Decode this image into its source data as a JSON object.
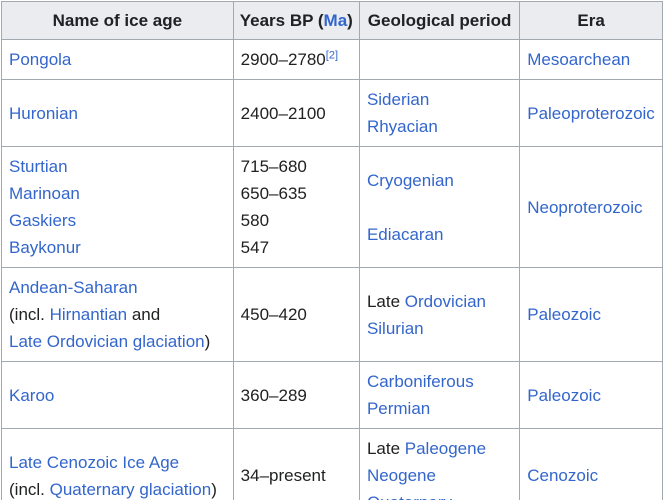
{
  "header": {
    "col1": "Name of ice age",
    "col2_prefix": "Years BP (",
    "col2_link": "Ma",
    "col2_suffix": ")",
    "col3": "Geological period",
    "col4": "Era"
  },
  "rows": [
    {
      "name": "Pongola",
      "years": "2900–2780",
      "ref": "[2]",
      "era": "Mesoarchean"
    },
    {
      "name": "Huronian",
      "years": "2400–2100",
      "period": [
        "Siderian",
        "Rhyacian"
      ],
      "era": "Paleoproterozoic"
    },
    {
      "names": [
        "Sturtian",
        "Marinoan",
        "Gaskiers",
        "Baykonur"
      ],
      "years": [
        "715–680",
        "650–635",
        "580",
        "547"
      ],
      "period": [
        "Cryogenian",
        "Ediacaran"
      ],
      "era": "Neoproterozoic"
    },
    {
      "name_line1": "Andean-Saharan",
      "name_line2_prefix": "(incl. ",
      "name_line2_link": "Hirnantian",
      "name_line2_suffix": " and",
      "name_line3_link": "Late Ordovician glaciation",
      "name_line3_suffix": ")",
      "years": "450–420",
      "period_prefix": "Late ",
      "period_line1_link": "Ordovician",
      "period_line2": "Silurian",
      "era": "Paleozoic"
    },
    {
      "name": "Karoo",
      "years": "360–289",
      "period": [
        "Carboniferous",
        "Permian"
      ],
      "era": "Paleozoic"
    },
    {
      "name_line1": "Late Cenozoic Ice Age",
      "name_line2_prefix": "(incl. ",
      "name_line2_link": "Quaternary glaciation",
      "name_line2_suffix": ")",
      "years": "34–present",
      "period_prefix": "Late ",
      "period_line1_link": "Paleogene",
      "period_line2": "Neogene",
      "period_line3": "Quaternary",
      "era": "Cenozoic"
    }
  ]
}
